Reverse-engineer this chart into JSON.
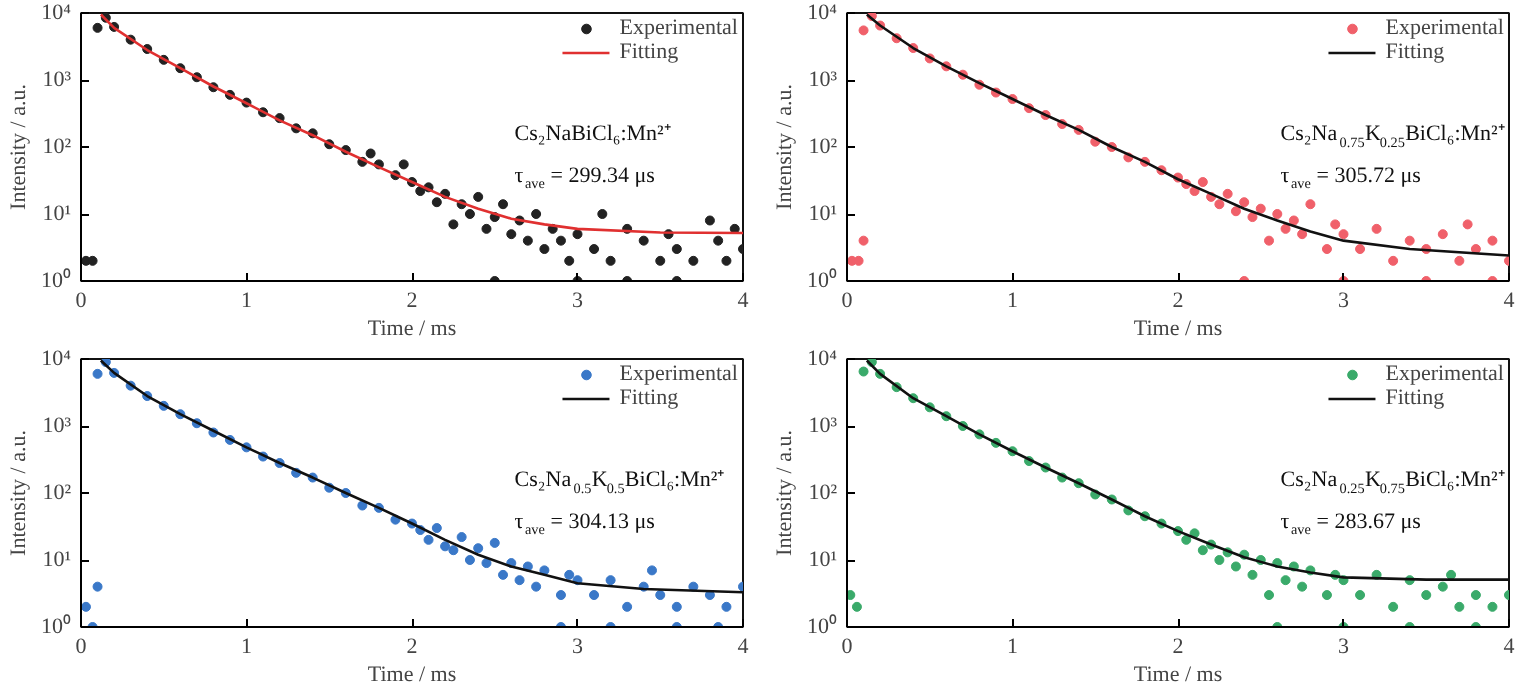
{
  "chart_data": [
    {
      "type": "scatter",
      "xlabel": "Time / ms",
      "ylabel": "Intensity / a.u.",
      "xlim": [
        0,
        4
      ],
      "xticks": [
        0,
        1,
        2,
        3,
        4
      ],
      "ylim": [
        1,
        10000
      ],
      "yticks": [
        {
          "value": 1,
          "label": "10⁰"
        },
        {
          "value": 10,
          "label": "10¹"
        },
        {
          "value": 100,
          "label": "10²"
        },
        {
          "value": 1000,
          "label": "10³"
        },
        {
          "value": 10000,
          "label": "10⁴"
        }
      ],
      "log": "y",
      "legend": "top right",
      "marker": "circle",
      "annotations": [
        "Cs₂NaBiCl₆:Mn²⁺",
        "τ$_{ave}$ = 299.34 μs"
      ],
      "series": [
        {
          "name": "Experimental",
          "color": "#222222",
          "x": [
            0.03,
            0.07,
            0.1,
            0.15,
            0.2,
            0.3,
            0.4,
            0.5,
            0.6,
            0.7,
            0.8,
            0.9,
            1.0,
            1.1,
            1.2,
            1.3,
            1.4,
            1.5,
            1.6,
            1.7,
            1.75,
            1.8,
            1.9,
            1.95,
            2.0,
            2.05,
            2.1,
            2.15,
            2.2,
            2.25,
            2.3,
            2.35,
            2.4,
            2.45,
            2.5,
            2.55,
            2.6,
            2.65,
            2.7,
            2.75,
            2.8,
            2.85,
            2.9,
            2.95,
            3.0,
            3.1,
            3.15,
            3.2,
            3.3,
            3.4,
            3.5,
            3.55,
            3.6,
            3.7,
            3.8,
            3.85,
            3.9,
            3.95,
            4.0,
            2.5,
            3.0,
            3.3,
            3.6
          ],
          "values": [
            2,
            2,
            6000,
            8500,
            6200,
            4000,
            2900,
            2000,
            1500,
            1100,
            780,
            600,
            460,
            330,
            270,
            190,
            160,
            110,
            90,
            60,
            80,
            55,
            38,
            55,
            30,
            22,
            25,
            15,
            20,
            7,
            14,
            10,
            18,
            6,
            9,
            14,
            5,
            8,
            4,
            10,
            3,
            6,
            4,
            2,
            5,
            3,
            10,
            2,
            6,
            4,
            2,
            5,
            3,
            2,
            8,
            4,
            2,
            6,
            3,
            1,
            1,
            1,
            1
          ]
        },
        {
          "name": "Fitting",
          "type": "line",
          "marker": "none",
          "color": "#e03030",
          "x": [
            0.12,
            0.2,
            0.4,
            0.6,
            0.8,
            1.0,
            1.2,
            1.4,
            1.6,
            1.8,
            2.0,
            2.2,
            2.4,
            2.6,
            2.8,
            3.0,
            3.5,
            4.0
          ],
          "values": [
            9500,
            6000,
            2800,
            1500,
            800,
            450,
            250,
            150,
            85,
            50,
            30,
            18,
            12,
            8.5,
            7,
            6,
            5.3,
            5.2
          ]
        }
      ]
    },
    {
      "type": "scatter",
      "xlabel": "Time / ms",
      "ylabel": "Intensity / a.u.",
      "xlim": [
        0,
        4
      ],
      "xticks": [
        0,
        1,
        2,
        3,
        4
      ],
      "ylim": [
        1,
        10000
      ],
      "yticks": [
        {
          "value": 1,
          "label": "10⁰"
        },
        {
          "value": 10,
          "label": "10¹"
        },
        {
          "value": 100,
          "label": "10²"
        },
        {
          "value": 1000,
          "label": "10³"
        },
        {
          "value": 10000,
          "label": "10⁴"
        }
      ],
      "log": "y",
      "legend": "top right",
      "marker": "circle",
      "annotations": [
        "Cs₂Na$_{0.75}$K$_{0.25}$BiCl₆:Mn²⁺",
        "τ$_{ave}$ = 305.72 μs"
      ],
      "series": [
        {
          "name": "Experimental",
          "color": "#f0606a",
          "x": [
            0.03,
            0.07,
            0.1,
            0.1,
            0.15,
            0.2,
            0.3,
            0.4,
            0.5,
            0.6,
            0.7,
            0.8,
            0.9,
            1.0,
            1.1,
            1.2,
            1.3,
            1.4,
            1.5,
            1.6,
            1.7,
            1.8,
            1.9,
            2.0,
            2.05,
            2.1,
            2.15,
            2.2,
            2.25,
            2.3,
            2.35,
            2.4,
            2.45,
            2.5,
            2.55,
            2.6,
            2.65,
            2.7,
            2.75,
            2.8,
            2.9,
            2.95,
            3.0,
            3.1,
            3.2,
            3.3,
            3.4,
            3.5,
            3.6,
            3.7,
            3.75,
            3.8,
            3.9,
            4.0,
            2.4,
            3.0,
            3.5,
            3.9
          ],
          "values": [
            2,
            2,
            4,
            5500,
            9000,
            6500,
            4200,
            3000,
            2100,
            1600,
            1200,
            850,
            650,
            520,
            380,
            300,
            220,
            180,
            120,
            100,
            70,
            60,
            45,
            35,
            28,
            22,
            30,
            18,
            14,
            20,
            11,
            15,
            9,
            12,
            4,
            10,
            6,
            8,
            5,
            14,
            3,
            7,
            5,
            3,
            6,
            2,
            4,
            3,
            5,
            2,
            7,
            3,
            4,
            2,
            1,
            1,
            1,
            1
          ]
        },
        {
          "name": "Fitting",
          "type": "line",
          "color": "#111111",
          "x": [
            0.12,
            0.2,
            0.4,
            0.6,
            0.8,
            1.0,
            1.2,
            1.4,
            1.6,
            1.8,
            2.0,
            2.2,
            2.4,
            2.6,
            2.8,
            3.0,
            3.4,
            4.0
          ],
          "values": [
            9500,
            6500,
            3000,
            1600,
            900,
            520,
            300,
            180,
            100,
            60,
            33,
            20,
            12,
            8,
            5.5,
            4,
            3,
            2.4
          ],
          "marker": "none"
        }
      ]
    },
    {
      "type": "scatter",
      "xlabel": "Time / ms",
      "ylabel": "Intensity / a.u.",
      "xlim": [
        0,
        4
      ],
      "xticks": [
        0,
        1,
        2,
        3,
        4
      ],
      "ylim": [
        1,
        10000
      ],
      "yticks": [
        {
          "value": 1,
          "label": "10⁰"
        },
        {
          "value": 10,
          "label": "10¹"
        },
        {
          "value": 100,
          "label": "10²"
        },
        {
          "value": 1000,
          "label": "10³"
        },
        {
          "value": 10000,
          "label": "10⁴"
        }
      ],
      "log": "y",
      "legend": "top right",
      "marker": "circle",
      "annotations": [
        "Cs₂Na$_{0.5}$K$_{0.5}$BiCl₆:Mn²⁺",
        "τ$_{ave}$ = 304.13 μs"
      ],
      "series": [
        {
          "name": "Experimental",
          "color": "#3a78c8",
          "x": [
            0.03,
            0.07,
            0.1,
            0.1,
            0.15,
            0.2,
            0.3,
            0.4,
            0.5,
            0.6,
            0.7,
            0.8,
            0.9,
            1.0,
            1.1,
            1.2,
            1.3,
            1.4,
            1.5,
            1.6,
            1.7,
            1.8,
            1.9,
            2.0,
            2.05,
            2.1,
            2.15,
            2.2,
            2.25,
            2.3,
            2.35,
            2.4,
            2.45,
            2.5,
            2.55,
            2.6,
            2.65,
            2.7,
            2.75,
            2.8,
            2.9,
            2.95,
            3.0,
            3.1,
            3.2,
            3.3,
            3.4,
            3.45,
            3.5,
            3.6,
            3.7,
            3.8,
            3.9,
            4.0,
            2.9,
            3.2,
            3.6,
            3.85
          ],
          "values": [
            2,
            1,
            4,
            6000,
            9000,
            6200,
            4000,
            2800,
            2000,
            1500,
            1100,
            800,
            620,
            480,
            350,
            280,
            200,
            170,
            120,
            100,
            65,
            60,
            40,
            35,
            28,
            20,
            30,
            16,
            14,
            22,
            10,
            15,
            9,
            18,
            6,
            9,
            5,
            8,
            4,
            7,
            3,
            6,
            5,
            3,
            5,
            2,
            4,
            7,
            3,
            2,
            4,
            3,
            2,
            4,
            1,
            1,
            1,
            1
          ]
        },
        {
          "name": "Fitting",
          "type": "line",
          "color": "#111111",
          "x": [
            0.12,
            0.2,
            0.4,
            0.6,
            0.8,
            1.0,
            1.2,
            1.4,
            1.6,
            1.8,
            2.0,
            2.2,
            2.4,
            2.6,
            2.8,
            3.0,
            3.4,
            4.0
          ],
          "values": [
            9500,
            6200,
            2800,
            1500,
            850,
            480,
            280,
            170,
            100,
            60,
            35,
            20,
            12,
            8,
            6,
            4.5,
            3.7,
            3.3
          ],
          "marker": "none"
        }
      ]
    },
    {
      "type": "scatter",
      "xlabel": "Time / ms",
      "ylabel": "Intensity / a.u.",
      "xlim": [
        0,
        4
      ],
      "xticks": [
        0,
        1,
        2,
        3,
        4
      ],
      "ylim": [
        1,
        10000
      ],
      "yticks": [
        {
          "value": 1,
          "label": "10⁰"
        },
        {
          "value": 10,
          "label": "10¹"
        },
        {
          "value": 100,
          "label": "10²"
        },
        {
          "value": 1000,
          "label": "10³"
        },
        {
          "value": 10000,
          "label": "10⁴"
        }
      ],
      "log": "y",
      "legend": "top right",
      "marker": "circle",
      "annotations": [
        "Cs₂Na$_{0.25}$K$_{0.75}$BiCl₆:Mn²⁺",
        "τ$_{ave}$ = 283.67 μs"
      ],
      "series": [
        {
          "name": "Experimental",
          "color": "#3aaa6a",
          "x": [
            0.02,
            0.06,
            0.1,
            0.15,
            0.2,
            0.3,
            0.4,
            0.5,
            0.6,
            0.7,
            0.8,
            0.9,
            1.0,
            1.1,
            1.2,
            1.3,
            1.4,
            1.5,
            1.6,
            1.7,
            1.8,
            1.9,
            2.0,
            2.05,
            2.1,
            2.15,
            2.2,
            2.25,
            2.3,
            2.35,
            2.4,
            2.45,
            2.5,
            2.55,
            2.6,
            2.65,
            2.7,
            2.75,
            2.8,
            2.9,
            2.95,
            3.0,
            3.1,
            3.2,
            3.3,
            3.4,
            3.5,
            3.6,
            3.65,
            3.7,
            3.8,
            3.9,
            4.0,
            2.6,
            3.0,
            3.4,
            3.8
          ],
          "values": [
            3,
            2,
            6500,
            9000,
            6000,
            3800,
            2600,
            1900,
            1400,
            1000,
            750,
            560,
            420,
            300,
            240,
            170,
            140,
            95,
            80,
            55,
            45,
            35,
            27,
            20,
            25,
            14,
            17,
            10,
            13,
            8,
            12,
            6,
            10,
            3,
            9,
            5,
            8,
            4,
            7,
            3,
            6,
            5,
            3,
            6,
            2,
            5,
            3,
            4,
            6,
            2,
            3,
            2,
            3,
            1,
            1,
            1,
            1
          ]
        },
        {
          "name": "Fitting",
          "type": "line",
          "color": "#111111",
          "x": [
            0.12,
            0.2,
            0.4,
            0.6,
            0.8,
            1.0,
            1.2,
            1.4,
            1.6,
            1.8,
            2.0,
            2.2,
            2.4,
            2.6,
            2.8,
            3.0,
            3.5,
            4.0
          ],
          "values": [
            9500,
            6000,
            2600,
            1400,
            750,
            420,
            240,
            140,
            80,
            45,
            27,
            17,
            11,
            8,
            6.5,
            5.5,
            5.1,
            5.1
          ],
          "marker": "none"
        }
      ]
    }
  ]
}
